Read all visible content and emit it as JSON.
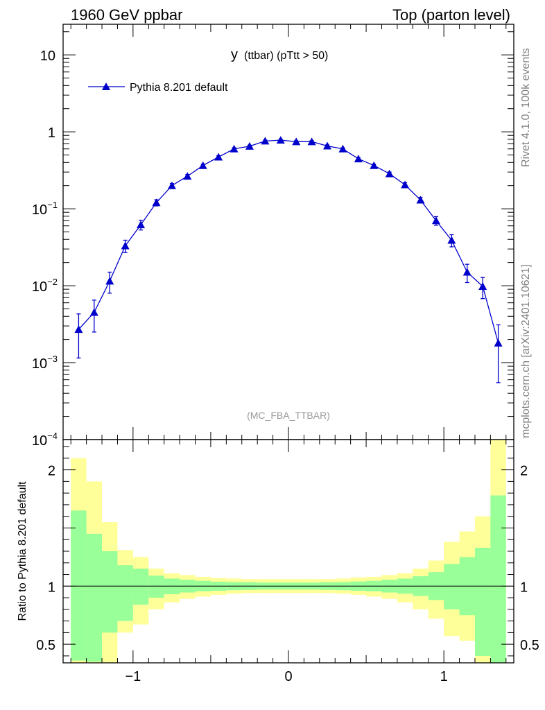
{
  "header": {
    "left": "1960 GeV ppbar",
    "right": "Top (parton level)"
  },
  "side_labels": {
    "rivet": "Rivet 4.1.0,  100k events",
    "mcplots": "mcplots.cern.ch [arXiv:2401.10621]"
  },
  "colors": {
    "mc_line": "#0000cc",
    "band_outer": "#ffff99",
    "band_inner": "#99ff99",
    "frame": "#000000"
  },
  "chart_data": [
    {
      "type": "line",
      "title_main": "y",
      "title_sub": "(ttbar) (pTtt > 50)",
      "watermark": "(MC_FBA_TTBAR)",
      "legend": [
        "Pythia 8.201 default"
      ],
      "legend_position": "top-left",
      "yscale": "log",
      "xlim": [
        -1.45,
        1.45
      ],
      "ylim": [
        0.0001,
        25
      ],
      "y_ticks": [
        {
          "value": 10,
          "label": "10",
          "exp": ""
        },
        {
          "value": 1,
          "label": "1",
          "exp": ""
        },
        {
          "value": 0.1,
          "label": "10",
          "exp": "−1"
        },
        {
          "value": 0.01,
          "label": "10",
          "exp": "−2"
        },
        {
          "value": 0.001,
          "label": "10",
          "exp": "−3"
        },
        {
          "value": 0.0001,
          "label": "10",
          "exp": "−4"
        }
      ],
      "series": [
        {
          "name": "Pythia 8.201 default",
          "x": [
            -1.35,
            -1.25,
            -1.15,
            -1.05,
            -0.95,
            -0.85,
            -0.75,
            -0.65,
            -0.55,
            -0.45,
            -0.35,
            -0.25,
            -0.15,
            -0.05,
            0.05,
            0.15,
            0.25,
            0.35,
            0.45,
            0.55,
            0.65,
            0.75,
            0.85,
            0.95,
            1.05,
            1.15,
            1.25,
            1.35
          ],
          "y": [
            0.0027,
            0.0045,
            0.0115,
            0.033,
            0.062,
            0.12,
            0.2,
            0.265,
            0.365,
            0.47,
            0.6,
            0.65,
            0.76,
            0.78,
            0.745,
            0.745,
            0.655,
            0.6,
            0.445,
            0.365,
            0.285,
            0.205,
            0.13,
            0.07,
            0.039,
            0.015,
            0.0098,
            0.0018
          ],
          "err_lo": [
            0.00155,
            0.002,
            0.0035,
            0.006,
            0.009,
            0.011,
            0.013,
            0.014,
            0.016,
            0.018,
            0.02,
            0.021,
            0.023,
            0.023,
            0.022,
            0.022,
            0.021,
            0.02,
            0.018,
            0.016,
            0.015,
            0.013,
            0.011,
            0.009,
            0.007,
            0.004,
            0.003,
            0.00125
          ],
          "err_hi": [
            0.0016,
            0.002,
            0.0035,
            0.006,
            0.009,
            0.011,
            0.013,
            0.014,
            0.016,
            0.018,
            0.02,
            0.021,
            0.023,
            0.023,
            0.022,
            0.022,
            0.021,
            0.02,
            0.018,
            0.016,
            0.015,
            0.013,
            0.011,
            0.009,
            0.007,
            0.004,
            0.003,
            0.0013
          ]
        }
      ]
    },
    {
      "type": "area",
      "ylabel": "Ratio to Pythia 8.201 default",
      "xlim": [
        -1.45,
        1.45
      ],
      "ylim": [
        0.34,
        2.26
      ],
      "x_ticks": [
        {
          "value": -1,
          "label": "−1"
        },
        {
          "value": 0,
          "label": "0"
        },
        {
          "value": 1,
          "label": "1"
        }
      ],
      "y_ticks": [
        {
          "value": 2,
          "label": "2"
        },
        {
          "value": 1,
          "label": "1"
        },
        {
          "value": 0.5,
          "label": "0.5"
        }
      ],
      "bins": [
        -1.4,
        -1.3,
        -1.2,
        -1.1,
        -1.0,
        -0.9,
        -0.8,
        -0.7,
        -0.6,
        -0.5,
        -0.4,
        -0.3,
        -0.2,
        -0.1,
        0.0,
        0.1,
        0.2,
        0.3,
        0.4,
        0.5,
        0.6,
        0.7,
        0.8,
        0.9,
        1.0,
        1.1,
        1.2,
        1.3,
        1.4
      ],
      "reference": 1.0,
      "inner_up": [
        1.65,
        1.45,
        1.3,
        1.18,
        1.15,
        1.09,
        1.065,
        1.055,
        1.045,
        1.038,
        1.035,
        1.033,
        1.03,
        1.03,
        1.03,
        1.03,
        1.033,
        1.035,
        1.04,
        1.045,
        1.055,
        1.065,
        1.085,
        1.12,
        1.19,
        1.25,
        1.33,
        1.78
      ],
      "inner_lo": [
        0.36,
        0.35,
        0.6,
        0.7,
        0.84,
        0.9,
        0.93,
        0.945,
        0.955,
        0.96,
        0.965,
        0.967,
        0.97,
        0.97,
        0.97,
        0.97,
        0.967,
        0.965,
        0.96,
        0.955,
        0.945,
        0.935,
        0.915,
        0.88,
        0.8,
        0.75,
        0.4,
        0.34
      ],
      "outer_up": [
        2.1,
        1.9,
        1.55,
        1.31,
        1.25,
        1.15,
        1.11,
        1.095,
        1.08,
        1.07,
        1.065,
        1.06,
        1.06,
        1.06,
        1.06,
        1.06,
        1.06,
        1.065,
        1.075,
        1.08,
        1.095,
        1.11,
        1.15,
        1.22,
        1.38,
        1.47,
        1.6,
        2.26
      ],
      "outer_lo": [
        0.34,
        0.34,
        0.34,
        0.6,
        0.67,
        0.8,
        0.86,
        0.89,
        0.91,
        0.925,
        0.935,
        0.94,
        0.94,
        0.94,
        0.94,
        0.94,
        0.94,
        0.935,
        0.925,
        0.91,
        0.89,
        0.86,
        0.8,
        0.72,
        0.57,
        0.53,
        0.34,
        0.34
      ]
    }
  ]
}
